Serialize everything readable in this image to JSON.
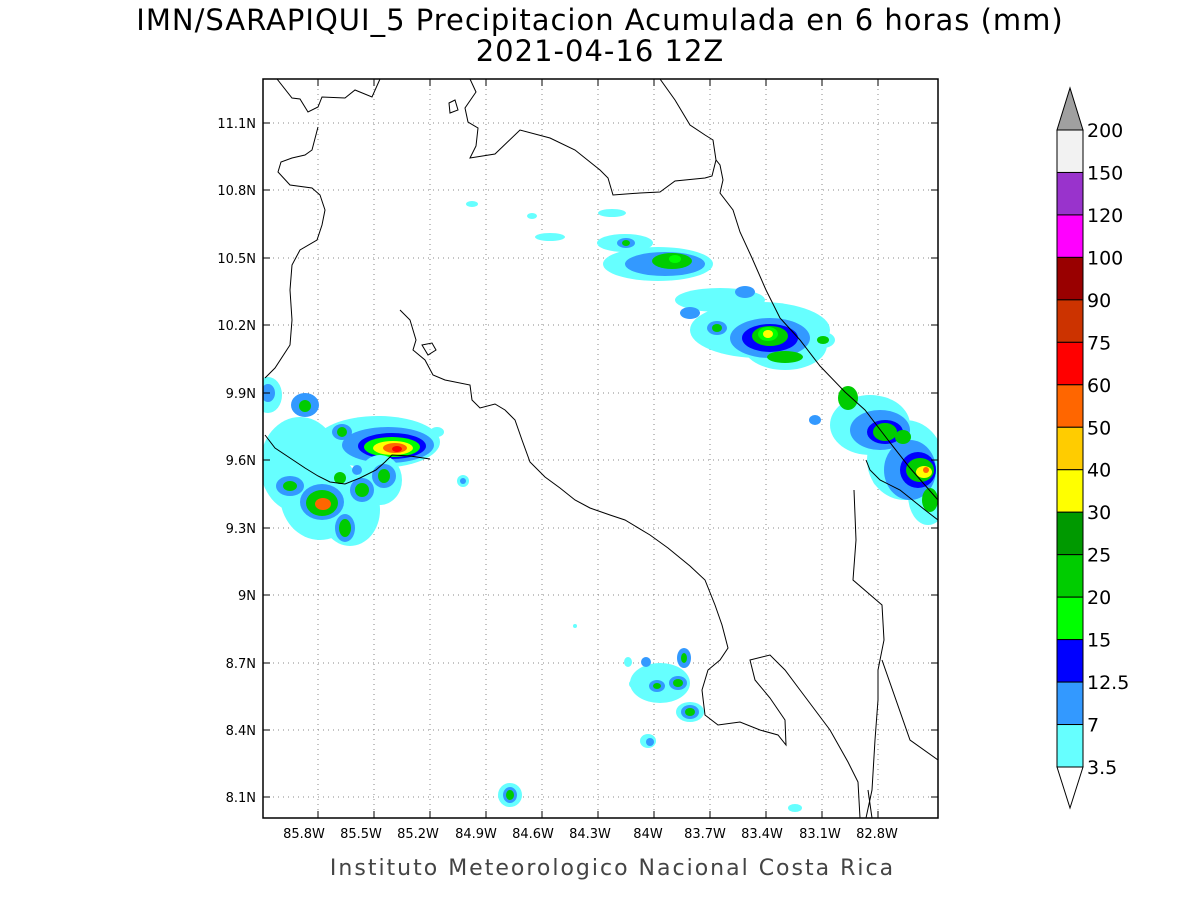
{
  "title": "IMN/SARAPIQUI_5 Precipitacion Acumulada en 6 horas (mm)",
  "subtitle": "2021-04-16 12Z",
  "credit": "Instituto Meteorologico Nacional Costa Rica",
  "map": {
    "lat_ticks": [
      "11.1N",
      "10.8N",
      "10.5N",
      "10.2N",
      "9.9N",
      "9.6N",
      "9.3N",
      "9N",
      "8.7N",
      "8.4N",
      "8.1N"
    ],
    "lon_ticks": [
      "85.8W",
      "85.5W",
      "85.2W",
      "84.9W",
      "84.6W",
      "84.3W",
      "84W",
      "83.7W",
      "83.4W",
      "83.1W",
      "82.8W"
    ],
    "grid": true
  },
  "colorbar": {
    "labels": [
      "200",
      "150",
      "120",
      "100",
      "90",
      "75",
      "60",
      "50",
      "40",
      "30",
      "25",
      "20",
      "15",
      "12.5",
      "7",
      "3.5"
    ],
    "colors": [
      "#a0a0a0",
      "#f2f2f2",
      "#9933cc",
      "#ff00ff",
      "#990000",
      "#cc3300",
      "#ff0000",
      "#ff6600",
      "#ffcc00",
      "#ffff00",
      "#009900",
      "#00cc00",
      "#00ff00",
      "#0000ff",
      "#3399ff",
      "#66ffff"
    ]
  }
}
